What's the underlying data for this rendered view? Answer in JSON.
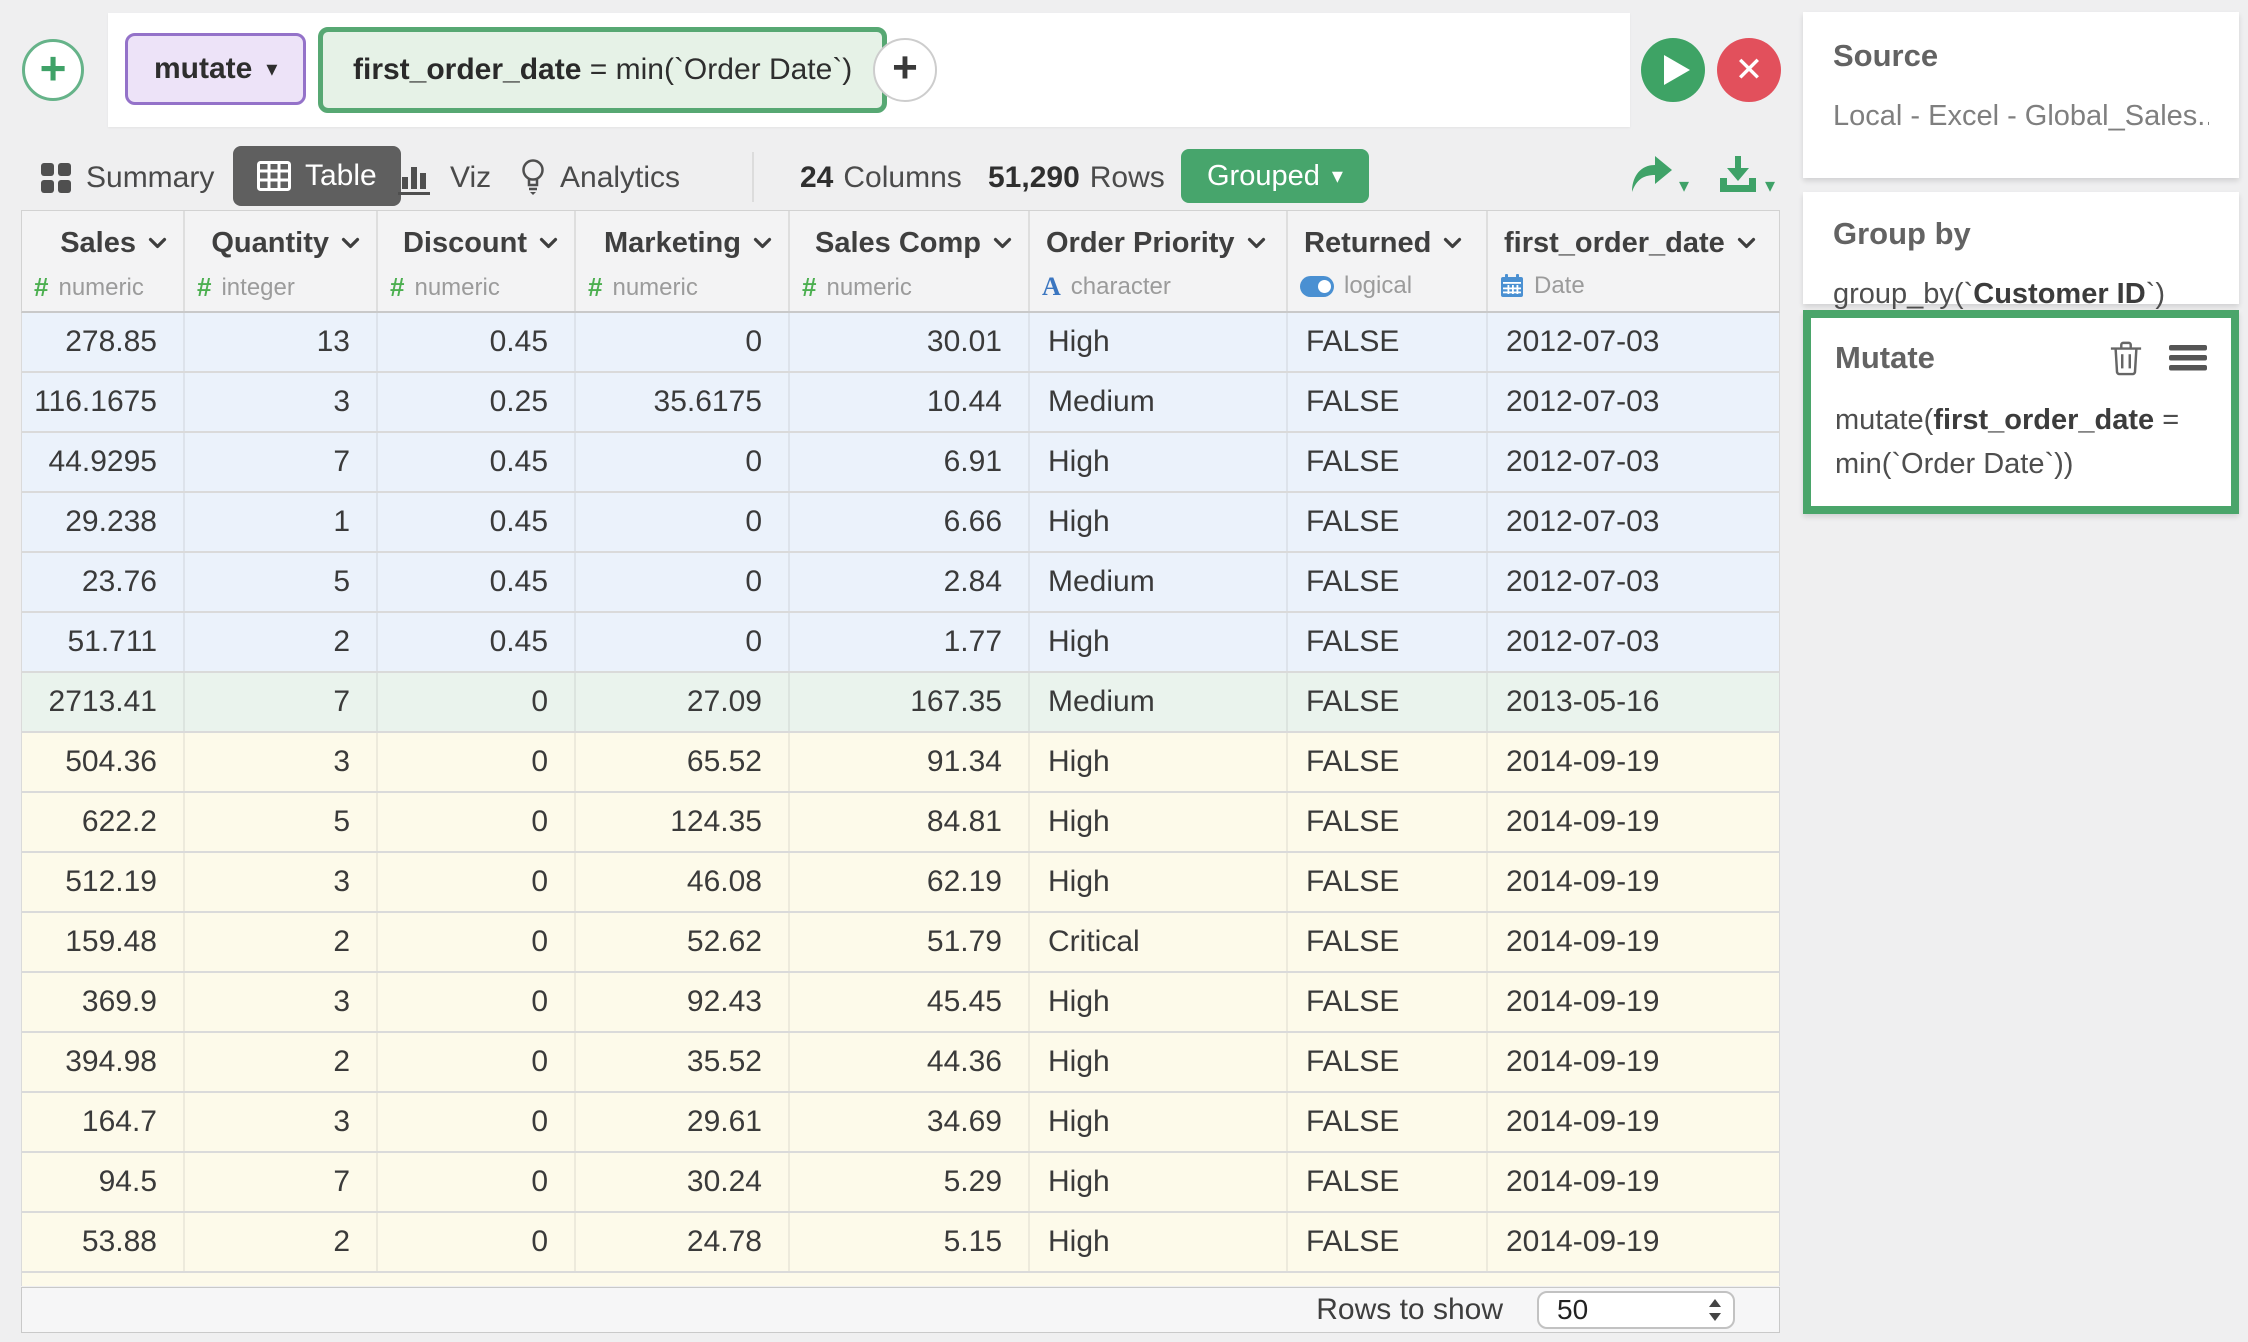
{
  "icons": {
    "plus": "+",
    "caret": "▾",
    "close": "✕",
    "hash": "#",
    "character": "A"
  },
  "colors": {
    "accent_green": "#47a56c",
    "play_green": "#3ea365",
    "stop_red": "#e2505c",
    "purple_border": "#9472c9",
    "purple_bg": "#ede3f8",
    "formula_border": "#57a873",
    "formula_bg": "#e6f2e7",
    "row_blue": "#ebf2fb",
    "row_green": "#eaf3ed",
    "row_yellow": "#fdfaea",
    "type_green": "#4caf50",
    "type_blue": "#4a90d2",
    "active_tab": "#5f5f5f",
    "mutate_border": "#4aa56a"
  },
  "toolbar": {
    "step_type": "mutate",
    "formula_name": "first_order_date",
    "formula_rest": " = min(`Order Date`)"
  },
  "tabs": {
    "summary": "Summary",
    "table": "Table",
    "viz": "Viz",
    "analytics": "Analytics"
  },
  "meta": {
    "columns_value": "24",
    "columns_label": "Columns",
    "rows_value": "51,290",
    "rows_label": "Rows",
    "grouped_label": "Grouped"
  },
  "table": {
    "columns": [
      {
        "label": "Sales",
        "type": "numeric",
        "icon": "hash",
        "align": "right"
      },
      {
        "label": "Quantity",
        "type": "integer",
        "icon": "hash",
        "align": "right"
      },
      {
        "label": "Discount",
        "type": "numeric",
        "icon": "hash",
        "align": "right"
      },
      {
        "label": "Marketing",
        "type": "numeric",
        "icon": "hash",
        "align": "right"
      },
      {
        "label": "Sales Comp",
        "type": "numeric",
        "icon": "hash",
        "align": "right"
      },
      {
        "label": "Order Priority",
        "type": "character",
        "icon": "A",
        "align": "left"
      },
      {
        "label": "Returned",
        "type": "logical",
        "icon": "toggle",
        "align": "left"
      },
      {
        "label": "first_order_date",
        "type": "Date",
        "icon": "calendar",
        "align": "left"
      }
    ],
    "rows": [
      {
        "tint": "blue",
        "cells": [
          "278.85",
          "13",
          "0.45",
          "0",
          "30.01",
          "High",
          "FALSE",
          "2012-07-03"
        ]
      },
      {
        "tint": "blue",
        "cells": [
          "116.1675",
          "3",
          "0.25",
          "35.6175",
          "10.44",
          "Medium",
          "FALSE",
          "2012-07-03"
        ]
      },
      {
        "tint": "blue",
        "cells": [
          "44.9295",
          "7",
          "0.45",
          "0",
          "6.91",
          "High",
          "FALSE",
          "2012-07-03"
        ]
      },
      {
        "tint": "blue",
        "cells": [
          "29.238",
          "1",
          "0.45",
          "0",
          "6.66",
          "High",
          "FALSE",
          "2012-07-03"
        ]
      },
      {
        "tint": "blue",
        "cells": [
          "23.76",
          "5",
          "0.45",
          "0",
          "2.84",
          "Medium",
          "FALSE",
          "2012-07-03"
        ]
      },
      {
        "tint": "blue",
        "cells": [
          "51.711",
          "2",
          "0.45",
          "0",
          "1.77",
          "High",
          "FALSE",
          "2012-07-03"
        ]
      },
      {
        "tint": "green",
        "cells": [
          "2713.41",
          "7",
          "0",
          "27.09",
          "167.35",
          "Medium",
          "FALSE",
          "2013-05-16"
        ]
      },
      {
        "tint": "yellow",
        "cells": [
          "504.36",
          "3",
          "0",
          "65.52",
          "91.34",
          "High",
          "FALSE",
          "2014-09-19"
        ]
      },
      {
        "tint": "yellow",
        "cells": [
          "622.2",
          "5",
          "0",
          "124.35",
          "84.81",
          "High",
          "FALSE",
          "2014-09-19"
        ]
      },
      {
        "tint": "yellow",
        "cells": [
          "512.19",
          "3",
          "0",
          "46.08",
          "62.19",
          "High",
          "FALSE",
          "2014-09-19"
        ]
      },
      {
        "tint": "yellow",
        "cells": [
          "159.48",
          "2",
          "0",
          "52.62",
          "51.79",
          "Critical",
          "FALSE",
          "2014-09-19"
        ]
      },
      {
        "tint": "yellow",
        "cells": [
          "369.9",
          "3",
          "0",
          "92.43",
          "45.45",
          "High",
          "FALSE",
          "2014-09-19"
        ]
      },
      {
        "tint": "yellow",
        "cells": [
          "394.98",
          "2",
          "0",
          "35.52",
          "44.36",
          "High",
          "FALSE",
          "2014-09-19"
        ]
      },
      {
        "tint": "yellow",
        "cells": [
          "164.7",
          "3",
          "0",
          "29.61",
          "34.69",
          "High",
          "FALSE",
          "2014-09-19"
        ]
      },
      {
        "tint": "yellow",
        "cells": [
          "94.5",
          "7",
          "0",
          "30.24",
          "5.29",
          "High",
          "FALSE",
          "2014-09-19"
        ]
      },
      {
        "tint": "yellow",
        "cells": [
          "53.88",
          "2",
          "0",
          "24.78",
          "5.15",
          "High",
          "FALSE",
          "2014-09-19"
        ]
      }
    ],
    "partial_row": "yellow"
  },
  "footer": {
    "rows_to_show_label": "Rows to show",
    "rows_to_show_value": "50"
  },
  "sidebar": {
    "source": {
      "title": "Source",
      "body": "Local - Excel - Global_Sales...."
    },
    "group_by": {
      "title": "Group by",
      "prefix": "group_by(`",
      "field": "Customer ID",
      "suffix": "`)"
    },
    "mutate": {
      "title": "Mutate",
      "prefix": "mutate(",
      "field": "first_order_date",
      "suffix": " = min(`Order Date`))"
    }
  }
}
